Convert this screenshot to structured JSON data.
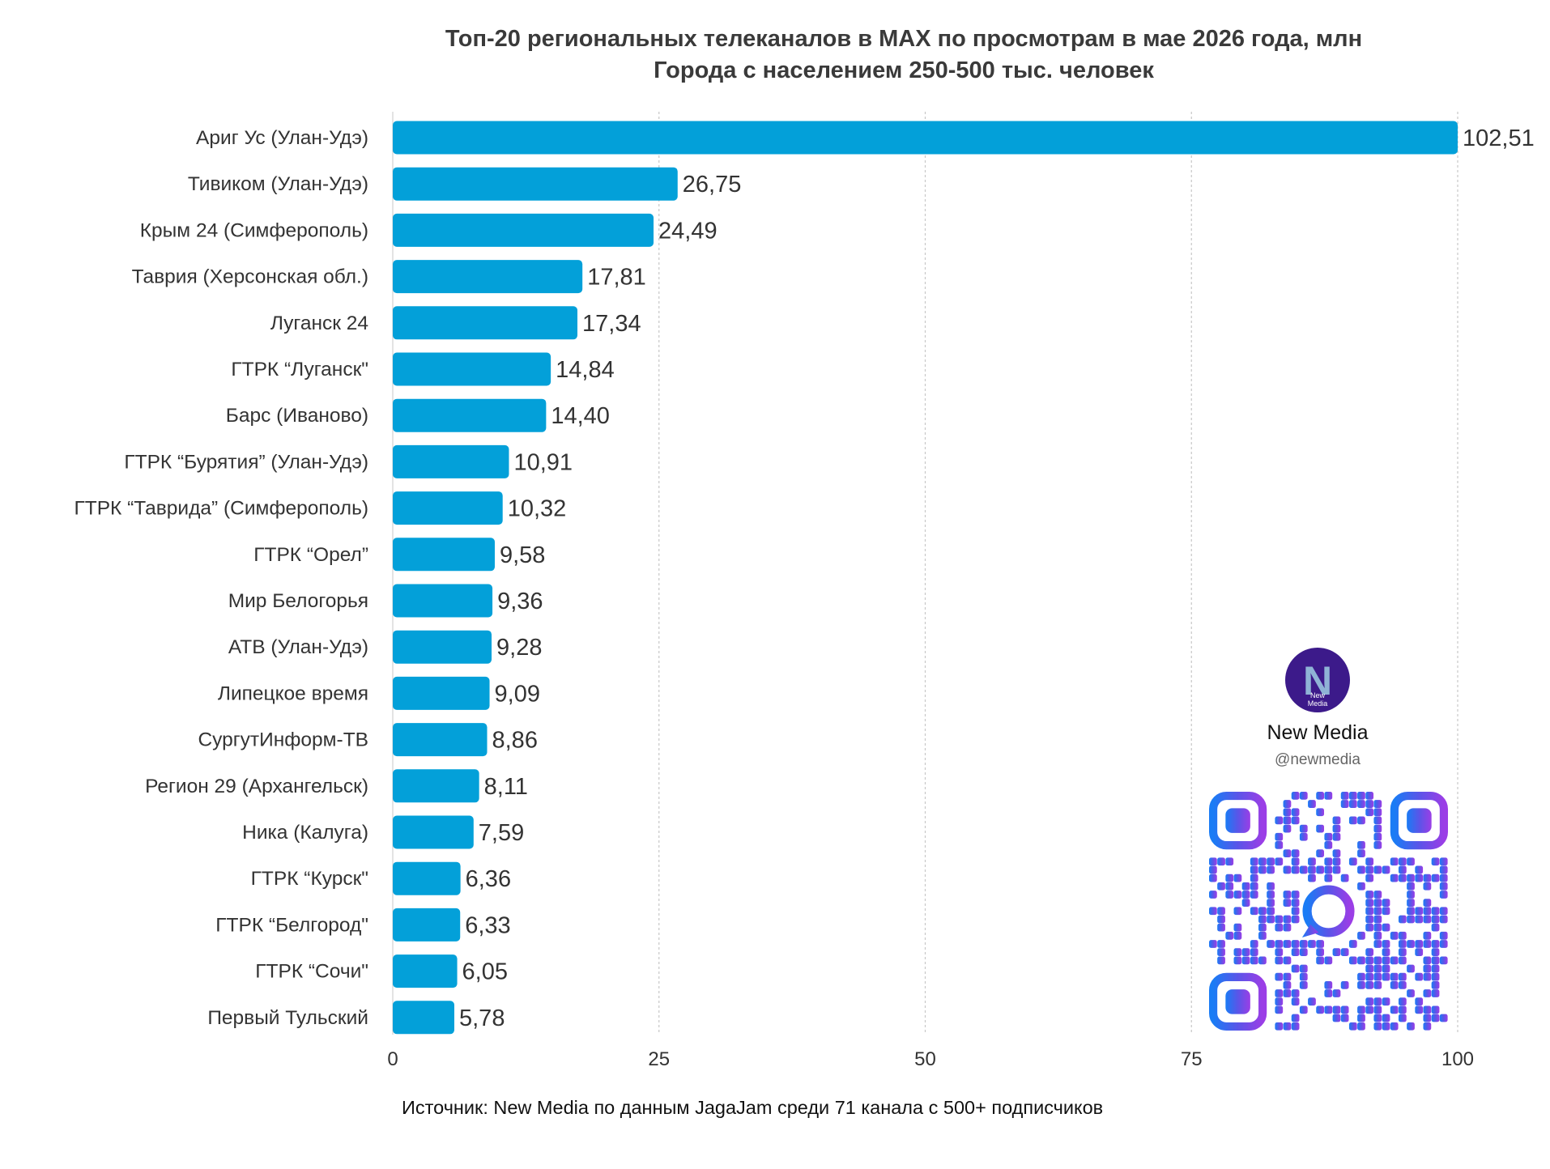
{
  "chart_data": {
    "type": "bar",
    "orientation": "horizontal",
    "title": "Топ-20 региональных телеканалов в MAX по просмотрам в мае 2026 года, млн",
    "subtitle": "Города с населением 250-500 тыс. человек",
    "categories": [
      "Ариг Ус (Улан-Удэ)",
      "Тивиком (Улан-Удэ)",
      "Крым 24 (Симферополь)",
      "Таврия (Херсонская обл.)",
      "Луганск 24",
      "ГТРК “Луганск\"",
      "Барс (Иваново)",
      "ГТРК “Бурятия” (Улан-Удэ)",
      "ГТРК “Таврида” (Симферополь)",
      "ГТРК “Орел”",
      "Мир Белогорья",
      "АТВ (Улан-Удэ)",
      "Липецкое время",
      "СургутИнформ-ТВ",
      "Регион 29 (Архангельск)",
      "Ника (Калуга)",
      "ГТРК “Курск\"",
      "ГТРК “Белгород\"",
      "ГТРК “Сочи\"",
      "Первый Тульский"
    ],
    "values": [
      102.51,
      26.75,
      24.49,
      17.81,
      17.34,
      14.84,
      14.4,
      10.91,
      10.32,
      9.58,
      9.36,
      9.28,
      9.09,
      8.86,
      8.11,
      7.59,
      6.36,
      6.33,
      6.05,
      5.78
    ],
    "value_labels": [
      "102,51",
      "26,75",
      "24,49",
      "17,81",
      "17,34",
      "14,84",
      "14,40",
      "10,91",
      "10,32",
      "9,58",
      "9,36",
      "9,28",
      "9,09",
      "8,86",
      "8,11",
      "7,59",
      "6,36",
      "6,33",
      "6,05",
      "5,78"
    ],
    "xlim": [
      0,
      100
    ],
    "xticks": [
      0,
      25,
      50,
      75,
      100
    ],
    "xtick_labels": [
      "0",
      "25",
      "50",
      "75",
      "100"
    ],
    "grid": true,
    "bar_color": "#03a0d9",
    "source": "Источник: New Media по данным JagaJam среди 71 канала с 500+ подписчиков"
  },
  "brand": {
    "name": "New Media",
    "handle": "@newmedia",
    "logo_letter": "N",
    "logo_small_text_1": "New",
    "logo_small_text_2": "Media",
    "logo_color": "#3c1a8a",
    "qr_colors": [
      "#1a7cf5",
      "#5a55e8",
      "#9b3ee6"
    ]
  }
}
